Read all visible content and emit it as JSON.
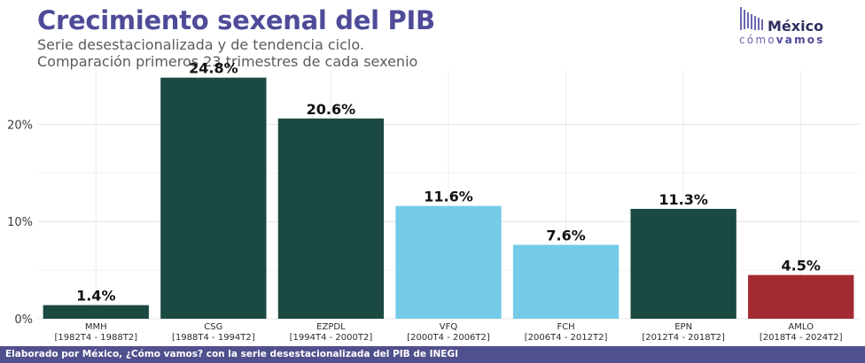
{
  "header": {
    "title": "Crecimiento sexenal del PIB",
    "subtitle_line1": "Serie desestacionalizada y de tendencia ciclo.",
    "subtitle_line2": "Comparación primeros 23 trimestres de cada sexenio"
  },
  "logo": {
    "name": "México",
    "tagline_part1": "cómo",
    "tagline_part2": "vamos",
    "icon": "bar-wave-icon",
    "color": "#4e4c98"
  },
  "footer": {
    "text": "Elaborado por México, ¿Cómo vamos? con la serie desestacionalizada del PIB de INEGI"
  },
  "chart_data": {
    "type": "bar",
    "categories": [
      "MMH",
      "CSG",
      "EZPDL",
      "VFQ",
      "FCH",
      "EPN",
      "AMLO"
    ],
    "periods": [
      "[1982T4 - 1988T2]",
      "[1988T4 - 1994T2]",
      "[1994T4 - 2000T2]",
      "[2000T4 - 2006T2]",
      "[2006T4 - 2012T2]",
      "[2012T4 - 2018T2]",
      "[2018T4 - 2024T2]"
    ],
    "values": [
      1.4,
      24.8,
      20.6,
      11.6,
      7.6,
      11.3,
      4.5
    ],
    "value_labels": [
      "1.4%",
      "24.8%",
      "20.6%",
      "11.6%",
      "7.6%",
      "11.3%",
      "4.5%"
    ],
    "colors": [
      "#1b4a42",
      "#1b4a42",
      "#1b4a42",
      "#74cbe8",
      "#74cbe8",
      "#1b4a42",
      "#a32a30"
    ],
    "ylim": [
      0,
      25.5
    ],
    "yticks": [
      0,
      10,
      20
    ],
    "ytick_labels": [
      "0%",
      "10%",
      "20%"
    ],
    "grid": true,
    "legend": "none"
  }
}
